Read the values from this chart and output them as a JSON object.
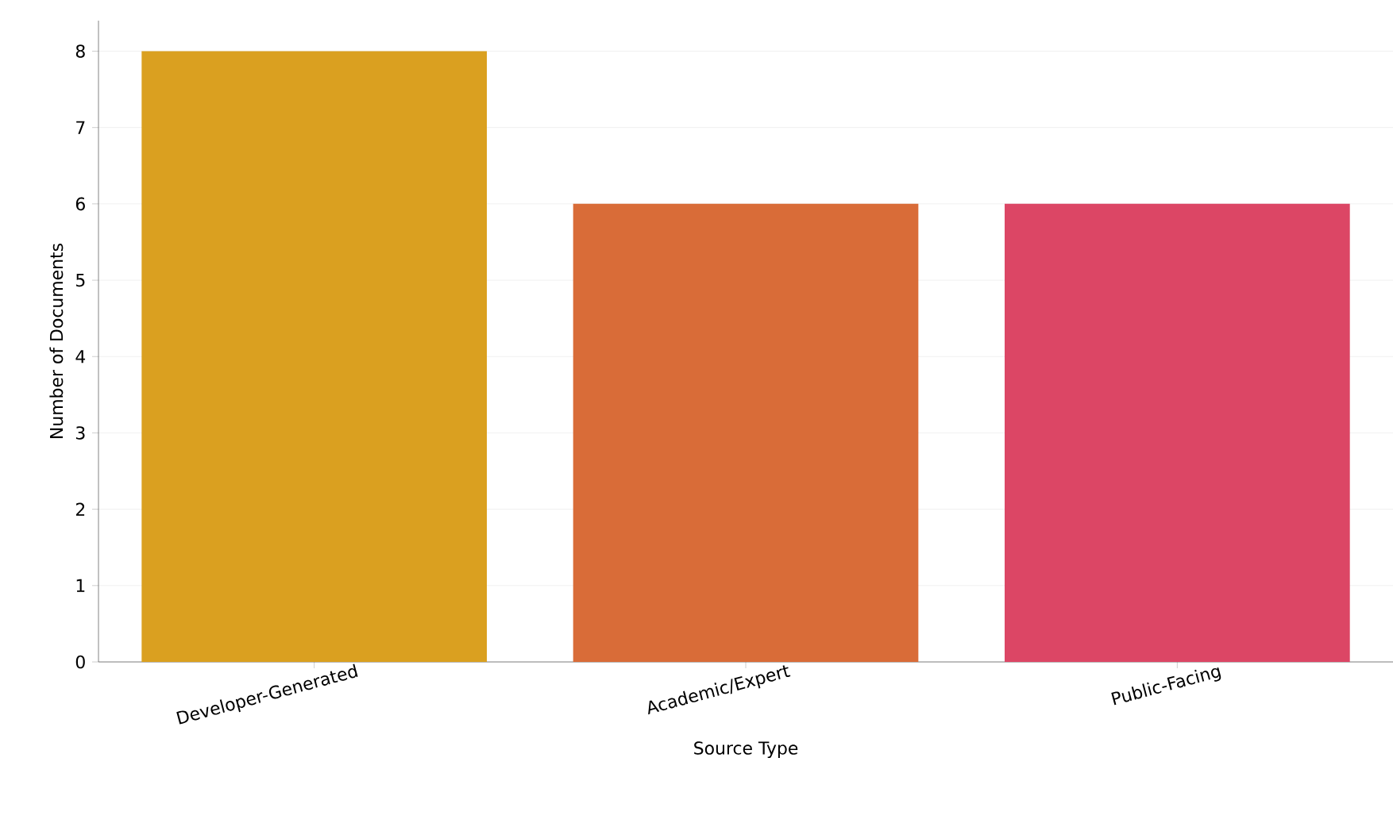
{
  "chart_data": {
    "type": "bar",
    "categories": [
      "Developer-Generated",
      "Academic/Expert",
      "Public-Facing"
    ],
    "values": [
      8,
      6,
      6
    ],
    "colors": [
      "#daa020",
      "#d96c38",
      "#dc4665"
    ],
    "xlabel": "Source Type",
    "ylabel": "Number of Documents",
    "ylim": [
      0,
      8.4
    ],
    "yticks": [
      0,
      1,
      2,
      3,
      4,
      5,
      6,
      7,
      8
    ],
    "grid": "y"
  }
}
